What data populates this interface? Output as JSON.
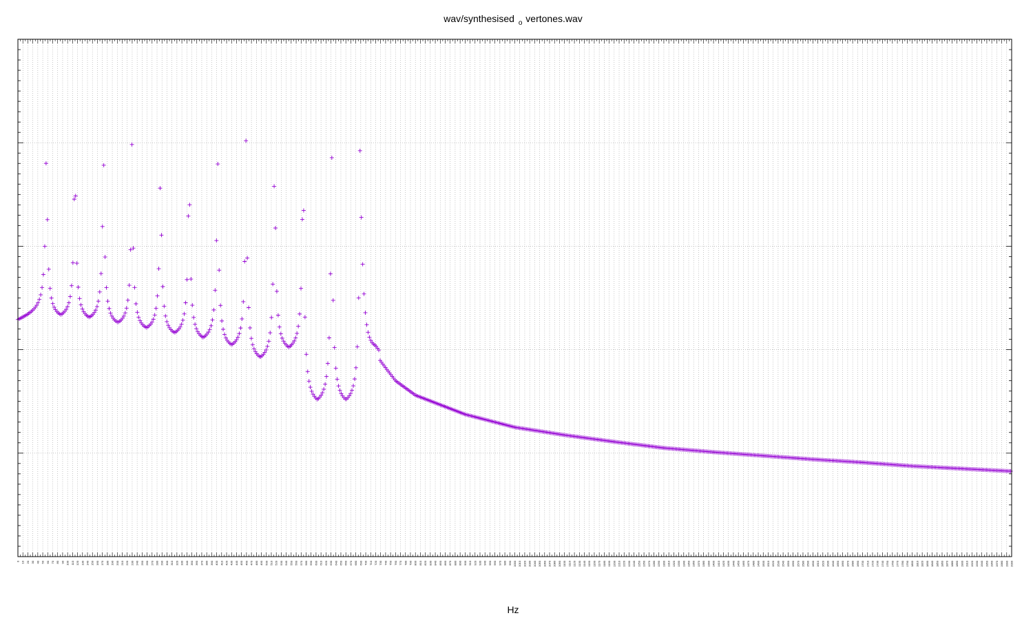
{
  "chart_data": {
    "type": "scatter",
    "title_main": "wav/synthesised",
    "title_sub": "o",
    "title_rest": "vertones.wav",
    "xlabel": "Hz",
    "ylabel": "",
    "xlim": [
      0,
      2000
    ],
    "ylim": [
      0,
      100
    ],
    "x_tick_step": 10,
    "x_minor_step": 5,
    "y_major_step": 20,
    "y_minor_step": 2,
    "grid": true,
    "marker": "plus",
    "series": [
      {
        "color": "#9400d3",
        "harmonic_spacing_hz": 57.4,
        "harmonic_count": 12,
        "peak_levels": [
          82.5,
          82.2,
          81.5,
          80.3,
          78.8,
          80.3,
          81.2,
          82.2,
          82.4,
          82.5,
          82.4,
          82.2
        ],
        "trough_levels": [
          45.5,
          45.0,
          44.0,
          43.0,
          42.0,
          41.0,
          39.5,
          37.0,
          39.0,
          28.5
        ],
        "tail_points": [
          [
            0,
            45.3
          ],
          [
            50,
            47.5
          ],
          [
            720,
            39.0
          ],
          [
            760,
            34.0
          ],
          [
            800,
            31.2
          ],
          [
            900,
            27.5
          ],
          [
            1000,
            25.0
          ],
          [
            1100,
            23.5
          ],
          [
            1200,
            22.2
          ],
          [
            1300,
            21.0
          ],
          [
            1400,
            20.2
          ],
          [
            1500,
            19.5
          ],
          [
            1600,
            18.8
          ],
          [
            1700,
            18.2
          ],
          [
            1800,
            17.5
          ],
          [
            1900,
            17.0
          ],
          [
            2000,
            16.5
          ]
        ]
      }
    ]
  }
}
